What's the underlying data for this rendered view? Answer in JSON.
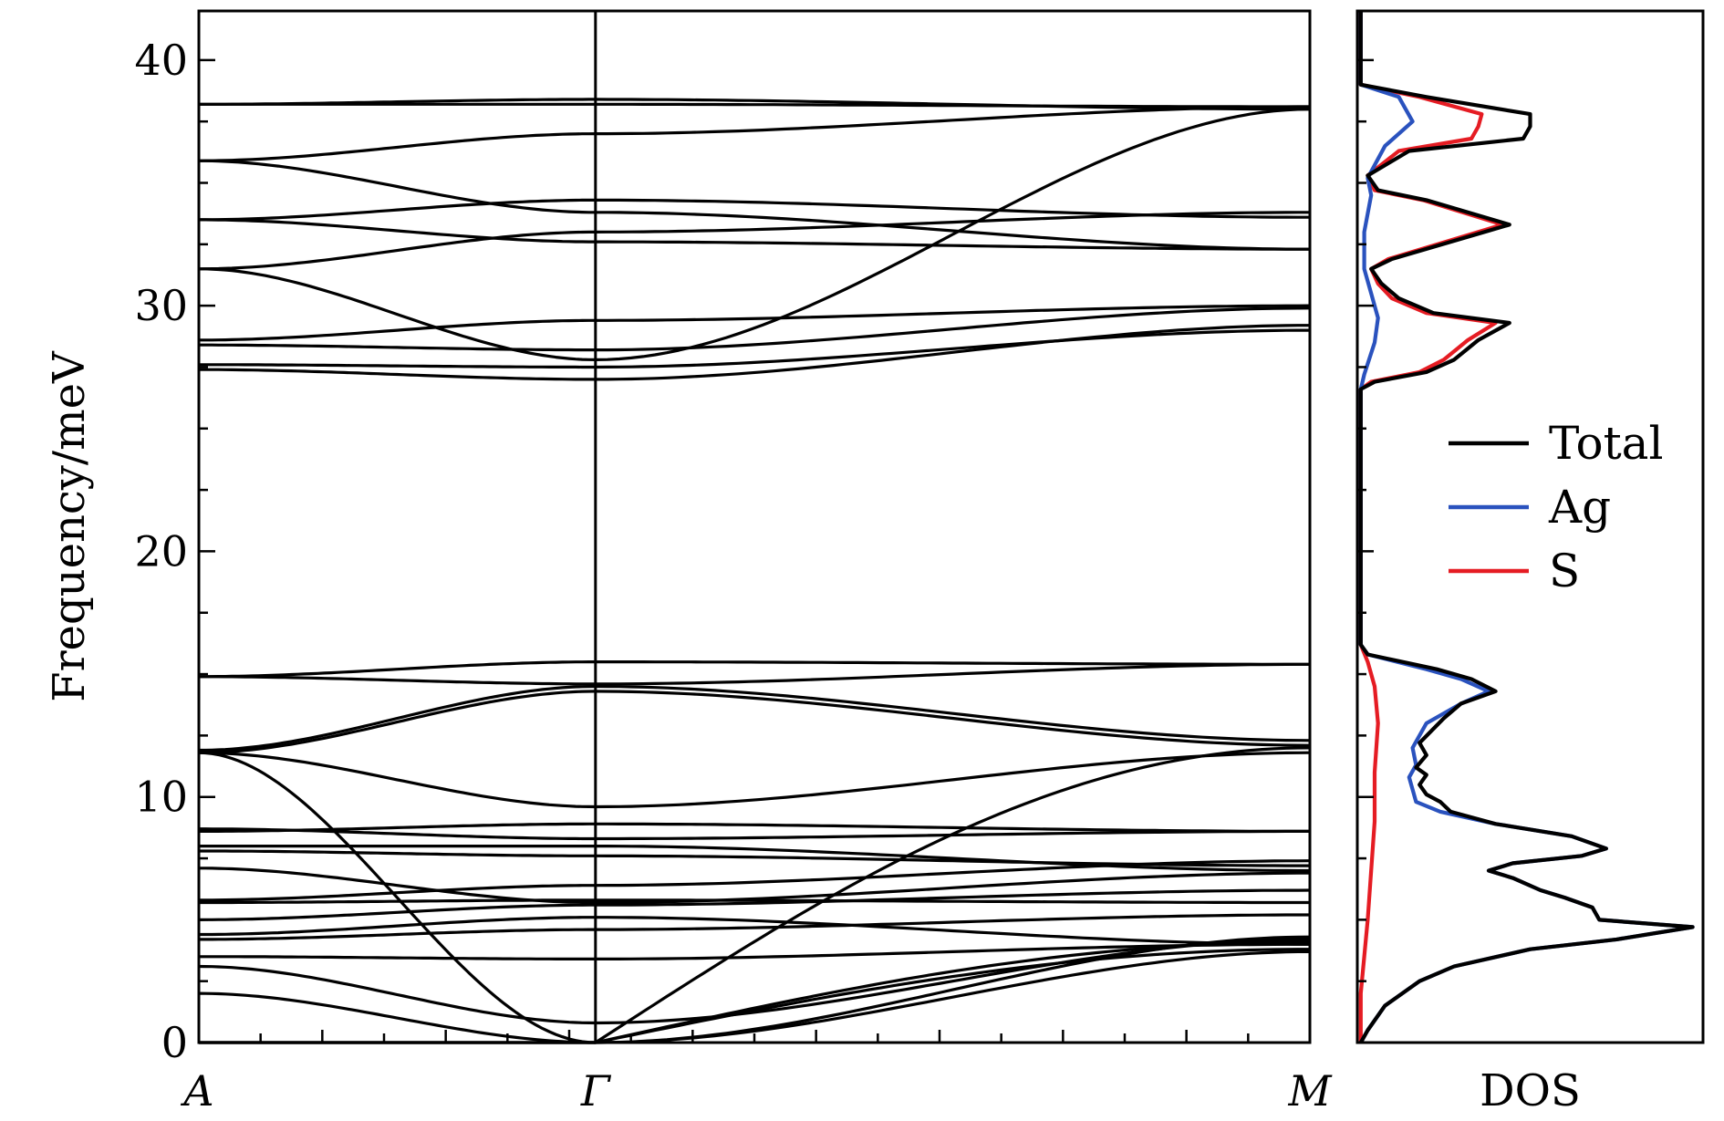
{
  "chart_data": [
    {
      "type": "line",
      "ylabel": "Frequency/meV",
      "ylim": [
        0,
        42
      ],
      "yticks": [
        0,
        10,
        20,
        30,
        40
      ],
      "ytick_labels": [
        "0",
        "10",
        "20",
        "30",
        "40"
      ],
      "x_kpoints": [
        {
          "label": "A",
          "pos": 0
        },
        {
          "label": "Γ",
          "pos": 0.357
        },
        {
          "label": "M",
          "pos": 1
        }
      ],
      "line_color": "#000000",
      "bands": [
        {
          "A": 0,
          "G": 0,
          "M": 3.8,
          "shape": "acoustic-right"
        },
        {
          "A": 0,
          "G": 0,
          "M": 4.1,
          "shape": "acoustic-right"
        },
        {
          "A": 0,
          "G": 0,
          "M": 12.0,
          "shape": "acoustic-right"
        },
        {
          "A": 2.0,
          "G": 0.0,
          "M": 3.7
        },
        {
          "A": 3.1,
          "G": 0.8,
          "M": 4.2
        },
        {
          "A": 11.8,
          "G": 0.0,
          "M": 4.3
        },
        {
          "A": 3.5,
          "G": 3.4,
          "M": 4.0
        },
        {
          "A": 4.2,
          "G": 4.6,
          "M": 5.2
        },
        {
          "A": 4.4,
          "G": 5.1,
          "M": 4.0
        },
        {
          "A": 5.0,
          "G": 5.6,
          "M": 6.2
        },
        {
          "A": 5.7,
          "G": 5.8,
          "M": 5.7
        },
        {
          "A": 5.8,
          "G": 6.4,
          "M": 7.4
        },
        {
          "A": 7.1,
          "G": 5.7,
          "M": 6.9
        },
        {
          "A": 7.8,
          "G": 7.6,
          "M": 7.2
        },
        {
          "A": 8.0,
          "G": 8.0,
          "M": 7.0
        },
        {
          "A": 8.6,
          "G": 8.9,
          "M": 8.6
        },
        {
          "A": 8.7,
          "G": 8.3,
          "M": 8.6
        },
        {
          "A": 11.8,
          "G": 9.6,
          "M": 11.8
        },
        {
          "A": 11.8,
          "G": 14.3,
          "M": 12.1
        },
        {
          "A": 11.9,
          "G": 14.5,
          "M": 12.3
        },
        {
          "A": 14.9,
          "G": 14.6,
          "M": 15.4
        },
        {
          "A": 14.9,
          "G": 15.5,
          "M": 15.4
        },
        {
          "A": 27.4,
          "G": 27.0,
          "M": 29.2
        },
        {
          "A": 27.6,
          "G": 27.5,
          "M": 29.0
        },
        {
          "A": 28.4,
          "G": 28.2,
          "M": 29.9
        },
        {
          "A": 28.6,
          "G": 29.4,
          "M": 30.0
        },
        {
          "A": 31.5,
          "G": 27.8,
          "M": 38.0
        },
        {
          "A": 31.5,
          "G": 33.0,
          "M": 33.8
        },
        {
          "A": 33.5,
          "G": 32.6,
          "M": 32.3
        },
        {
          "A": 33.5,
          "G": 34.3,
          "M": 33.6
        },
        {
          "A": 35.9,
          "G": 33.8,
          "M": 32.3
        },
        {
          "A": 35.9,
          "G": 37.0,
          "M": 38.1
        },
        {
          "A": 38.2,
          "G": 38.4,
          "M": 38.0
        },
        {
          "A": 38.2,
          "G": 38.2,
          "M": 38.1
        }
      ]
    },
    {
      "type": "line",
      "xlabel": "DOS",
      "ylim": [
        0,
        42
      ],
      "xlim": [
        0,
        1
      ],
      "legend_position": "right",
      "series": [
        {
          "name": "Total",
          "color": "#000000",
          "points": [
            [
              0.01,
              0
            ],
            [
              0.03,
              0.5
            ],
            [
              0.08,
              1.5
            ],
            [
              0.18,
              2.5
            ],
            [
              0.28,
              3.1
            ],
            [
              0.5,
              3.8
            ],
            [
              0.75,
              4.2
            ],
            [
              0.97,
              4.7
            ],
            [
              0.7,
              5.0
            ],
            [
              0.68,
              5.5
            ],
            [
              0.6,
              5.9
            ],
            [
              0.53,
              6.2
            ],
            [
              0.45,
              6.7
            ],
            [
              0.38,
              7.0
            ],
            [
              0.45,
              7.3
            ],
            [
              0.65,
              7.6
            ],
            [
              0.72,
              7.9
            ],
            [
              0.62,
              8.4
            ],
            [
              0.4,
              8.9
            ],
            [
              0.27,
              9.4
            ],
            [
              0.24,
              9.8
            ],
            [
              0.2,
              10.1
            ],
            [
              0.18,
              10.5
            ],
            [
              0.2,
              10.9
            ],
            [
              0.17,
              11.2
            ],
            [
              0.2,
              11.7
            ],
            [
              0.18,
              12.2
            ],
            [
              0.25,
              13.2
            ],
            [
              0.3,
              13.8
            ],
            [
              0.4,
              14.3
            ],
            [
              0.33,
              14.8
            ],
            [
              0.23,
              15.2
            ],
            [
              0.03,
              15.8
            ],
            [
              0.01,
              16.2
            ],
            [
              0.01,
              26.6
            ],
            [
              0.05,
              26.9
            ],
            [
              0.2,
              27.3
            ],
            [
              0.28,
              27.8
            ],
            [
              0.35,
              28.6
            ],
            [
              0.44,
              29.3
            ],
            [
              0.22,
              29.7
            ],
            [
              0.12,
              30.3
            ],
            [
              0.07,
              30.9
            ],
            [
              0.04,
              31.5
            ],
            [
              0.1,
              31.9
            ],
            [
              0.44,
              33.3
            ],
            [
              0.2,
              34.3
            ],
            [
              0.06,
              34.7
            ],
            [
              0.03,
              35.3
            ],
            [
              0.15,
              36.3
            ],
            [
              0.48,
              36.8
            ],
            [
              0.5,
              37.3
            ],
            [
              0.5,
              37.8
            ],
            [
              0.2,
              38.5
            ],
            [
              0.01,
              39.0
            ],
            [
              0.01,
              42
            ]
          ]
        },
        {
          "name": "Ag",
          "color": "#2a52be",
          "points": [
            [
              0.01,
              0
            ],
            [
              0.03,
              0.5
            ],
            [
              0.08,
              1.5
            ],
            [
              0.18,
              2.5
            ],
            [
              0.28,
              3.1
            ],
            [
              0.5,
              3.8
            ],
            [
              0.75,
              4.2
            ],
            [
              0.97,
              4.7
            ],
            [
              0.7,
              5.0
            ],
            [
              0.68,
              5.5
            ],
            [
              0.6,
              5.9
            ],
            [
              0.53,
              6.2
            ],
            [
              0.45,
              6.7
            ],
            [
              0.38,
              7.0
            ],
            [
              0.45,
              7.3
            ],
            [
              0.65,
              7.6
            ],
            [
              0.72,
              7.9
            ],
            [
              0.62,
              8.4
            ],
            [
              0.4,
              8.9
            ],
            [
              0.24,
              9.4
            ],
            [
              0.17,
              9.8
            ],
            [
              0.16,
              10.3
            ],
            [
              0.15,
              10.8
            ],
            [
              0.17,
              11.3
            ],
            [
              0.16,
              12.0
            ],
            [
              0.2,
              13.0
            ],
            [
              0.3,
              13.8
            ],
            [
              0.38,
              14.3
            ],
            [
              0.3,
              14.8
            ],
            [
              0.2,
              15.2
            ],
            [
              0.03,
              15.8
            ],
            [
              0.01,
              16.2
            ],
            [
              0.01,
              26.6
            ],
            [
              0.02,
              27.2
            ],
            [
              0.05,
              28.5
            ],
            [
              0.06,
              29.5
            ],
            [
              0.04,
              30.5
            ],
            [
              0.02,
              31.5
            ],
            [
              0.02,
              33.0
            ],
            [
              0.04,
              34.5
            ],
            [
              0.03,
              35.2
            ],
            [
              0.08,
              36.5
            ],
            [
              0.16,
              37.5
            ],
            [
              0.12,
              38.5
            ],
            [
              0.01,
              39.0
            ],
            [
              0.01,
              42
            ]
          ]
        },
        {
          "name": "S",
          "color": "#e51c23",
          "points": [
            [
              0.01,
              0
            ],
            [
              0.01,
              2.0
            ],
            [
              0.02,
              3.5
            ],
            [
              0.03,
              5.0
            ],
            [
              0.04,
              7.0
            ],
            [
              0.05,
              9.0
            ],
            [
              0.05,
              11.0
            ],
            [
              0.06,
              13.0
            ],
            [
              0.05,
              14.5
            ],
            [
              0.03,
              15.5
            ],
            [
              0.01,
              16.2
            ],
            [
              0.01,
              26.6
            ],
            [
              0.04,
              26.9
            ],
            [
              0.18,
              27.3
            ],
            [
              0.25,
              27.8
            ],
            [
              0.32,
              28.6
            ],
            [
              0.4,
              29.3
            ],
            [
              0.2,
              29.7
            ],
            [
              0.1,
              30.3
            ],
            [
              0.06,
              30.9
            ],
            [
              0.04,
              31.5
            ],
            [
              0.09,
              31.9
            ],
            [
              0.42,
              33.3
            ],
            [
              0.19,
              34.3
            ],
            [
              0.05,
              34.7
            ],
            [
              0.03,
              35.3
            ],
            [
              0.12,
              36.3
            ],
            [
              0.33,
              36.8
            ],
            [
              0.35,
              37.3
            ],
            [
              0.36,
              37.8
            ],
            [
              0.18,
              38.5
            ],
            [
              0.01,
              39.0
            ],
            [
              0.01,
              42
            ]
          ]
        }
      ]
    }
  ]
}
